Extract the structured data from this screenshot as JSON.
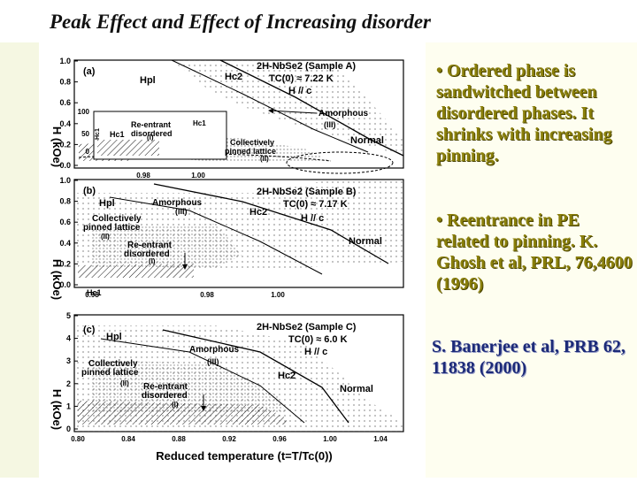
{
  "slide": {
    "title": "Peak Effect and Effect of Increasing disorder",
    "bullets": [
      "• Ordered phase is sandwitched between disordered phases. It shrinks with increasing pinning.",
      "• Reentrance in PE related to pinning. K. Ghosh et al, PRL, 76,4600 (1996)"
    ],
    "reference": "S. Banerjee et al, PRB 62, 11838 (2000)",
    "colors": {
      "bullet_text": "#8a7f0a",
      "reference_text": "#1c2a78",
      "side_panel": "#fefef0"
    }
  },
  "figure": {
    "x_axis_label": "Reduced temperature (t=T/Tc(0))",
    "y_axis_label": "H (kOe)",
    "panels": [
      {
        "id": "a",
        "tag": "(a)",
        "sample": "2H-NbSe2 (Sample A)",
        "tc": "TC(0) ≈ 7.22 K",
        "field": "H // c",
        "yticks": [
          "1.0",
          "0.8",
          "0.6",
          "0.4",
          "0.2",
          "0.0"
        ],
        "xticks": [
          "0.98",
          "1.00"
        ],
        "labels": {
          "hpl": "Hpl",
          "hc2": "Hc2",
          "hc1": "Hc1",
          "hc1b": "Hc1",
          "amorphous": "Amorphous",
          "amorphous_num": "(III)",
          "reentrant": "Re-entrant\ndisordered",
          "reentrant_num": "(I)",
          "pinned": "Collectively\npinned lattice",
          "pinned_num": "(II)",
          "normal": "Normal"
        },
        "inset": {
          "yticks": [
            "100",
            "50",
            "0"
          ],
          "y_label": "Hc1"
        }
      },
      {
        "id": "b",
        "tag": "(b)",
        "sample": "2H-NbSe2 (Sample B)",
        "tc": "TC(0) ≈ 7.17 K",
        "field": "H // c",
        "yticks": [
          "1.0",
          "0.8",
          "0.6",
          "0.4",
          "0.2",
          "0.0"
        ],
        "xticks": [
          "0.98",
          "0.98",
          "1.00"
        ],
        "labels": {
          "hpl": "Hpl",
          "hc2": "Hc2",
          "hc1": "Hc1",
          "amorphous": "Amorphous",
          "amorphous_num": "(III)",
          "reentrant": "Re-entrant\ndisordered",
          "reentrant_num": "(I)",
          "pinned": "Collectively\npinned lattice",
          "pinned_num": "(II)",
          "normal": "Normal"
        }
      },
      {
        "id": "c",
        "tag": "(c)",
        "sample": "2H-NbSe2 (Sample C)",
        "tc": "TC(0) ≈ 6.0 K",
        "field": "H // c",
        "yticks": [
          "5",
          "4",
          "3",
          "2",
          "1",
          "0"
        ],
        "xticks": [
          "0.80",
          "0.84",
          "0.88",
          "0.92",
          "0.96",
          "1.00",
          "1.04"
        ],
        "labels": {
          "hpl": "Hpl",
          "hc2": "Hc2",
          "amorphous": "Amorphous",
          "amorphous_num": "(III)",
          "reentrant": "Re-entrant\ndisordered",
          "reentrant_num": "(I)",
          "pinned": "Collectively\npinned lattice",
          "pinned_num": "(II)",
          "normal": "Normal"
        }
      }
    ]
  }
}
